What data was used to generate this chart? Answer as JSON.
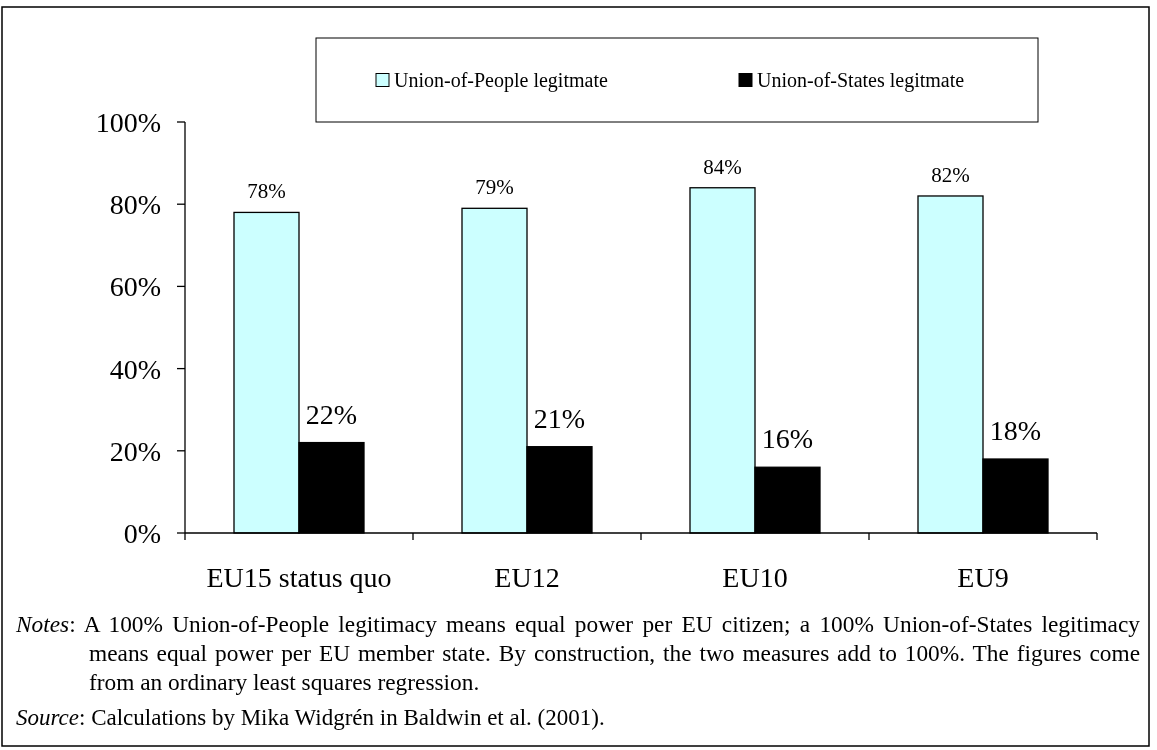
{
  "chart_data": {
    "type": "bar",
    "categories": [
      "EU15 status quo",
      "EU12",
      "EU10",
      "EU9"
    ],
    "series": [
      {
        "name": "Union-of-People legitmate",
        "color": "#ccffff",
        "values": [
          78,
          79,
          84,
          82
        ],
        "value_labels": [
          "78%",
          "79%",
          "84%",
          "82%"
        ]
      },
      {
        "name": "Union-of-States legitmate",
        "color": "#000000",
        "values": [
          22,
          21,
          16,
          18
        ],
        "value_labels": [
          "22%",
          "21%",
          "16%",
          "18%"
        ]
      }
    ],
    "ylim": [
      0,
      100
    ],
    "yticks": [
      {
        "value": 0,
        "label": "0%"
      },
      {
        "value": 20,
        "label": "20%"
      },
      {
        "value": 40,
        "label": "40%"
      },
      {
        "value": 60,
        "label": "60%"
      },
      {
        "value": 80,
        "label": "80%"
      },
      {
        "value": 100,
        "label": "100%"
      }
    ],
    "legend": "top",
    "annotations": [
      "Notes: A 100% Union-of-People legitimacy means equal power per EU citizen; a 100% Union-of-States legitimacy means equal power per EU member state. By construction, the two measures add to 100%. The figures come from an ordinary least squares regression.",
      "Source: Calculations by Mika Widgrén in Baldwin et al. (2001)."
    ]
  }
}
